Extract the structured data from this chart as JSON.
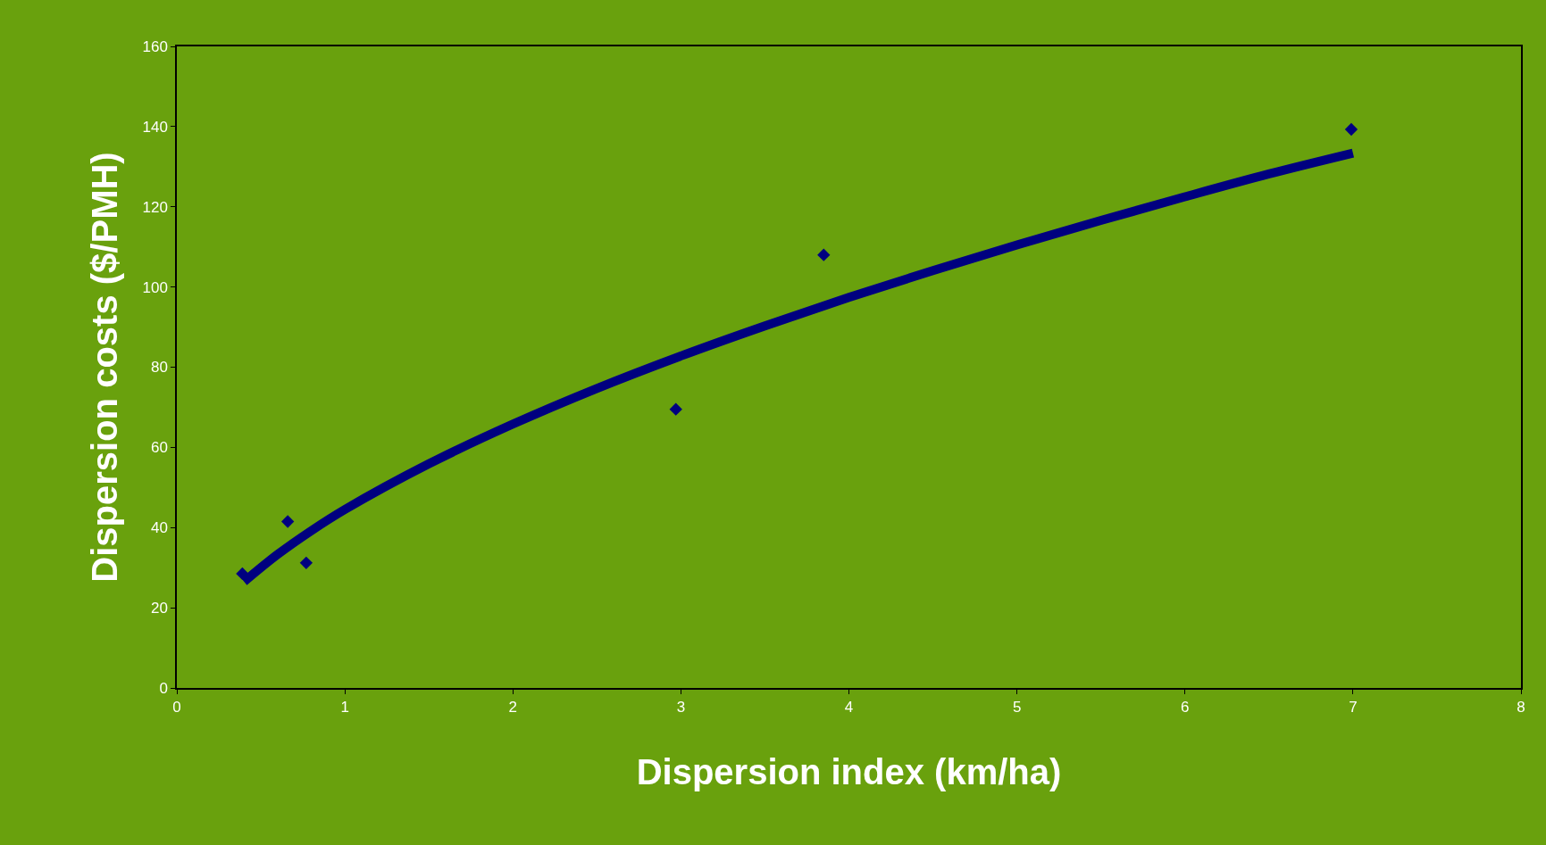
{
  "chart_data": {
    "type": "scatter",
    "xlabel": "Dispersion index (km/ha)",
    "ylabel": "Dispersion costs ($/PMH)",
    "xlim": [
      0,
      8
    ],
    "ylim": [
      0,
      160
    ],
    "xticks": [
      0,
      1,
      2,
      3,
      4,
      5,
      6,
      7,
      8
    ],
    "yticks": [
      0,
      20,
      40,
      60,
      80,
      100,
      120,
      140,
      160
    ],
    "grid": false,
    "marker": "diamond",
    "series": [
      {
        "color": "#000080",
        "x": [
          0.39,
          0.66,
          0.77,
          2.97,
          3.85,
          6.99
        ],
        "values": [
          28.5,
          41.5,
          31.2,
          69.5,
          108,
          139.3
        ]
      },
      {
        "type": "line",
        "color": "#000080",
        "marker": "none",
        "line_style": "solid",
        "x": [
          0.4,
          0.6,
          0.8,
          1,
          1.5,
          2,
          2.5,
          3,
          3.5,
          4,
          4.5,
          5,
          5.5,
          6,
          6.5,
          7
        ],
        "values": [
          26.5,
          33.3,
          39.2,
          44.5,
          55.9,
          65.8,
          74.7,
          82.8,
          90.3,
          97.4,
          104.1,
          110.5,
          116.6,
          122.5,
          128.2,
          133.4
        ]
      }
    ]
  }
}
